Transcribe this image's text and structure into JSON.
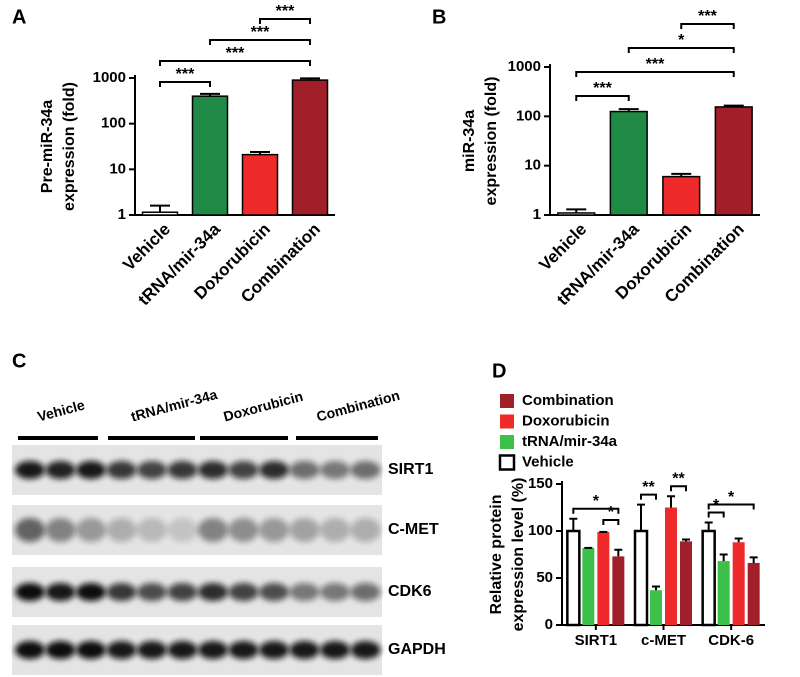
{
  "chart_data": [
    {
      "type": "bar",
      "panel_label": "A",
      "ylabel": [
        "Pre-miR-34a",
        "expression (fold)"
      ],
      "categories": [
        "Vehicle",
        "tRNA/mir-34a",
        "Doxorubicin",
        "Combination"
      ],
      "values": [
        1.15,
        400,
        21,
        900
      ],
      "errors": [
        0.45,
        50,
        3,
        80
      ],
      "colors": [
        "#ffffff",
        "#1e8a46",
        "#ee2a2a",
        "#a01f28"
      ],
      "log_scale": true,
      "ylim": [
        1,
        1000
      ],
      "yticks": [
        1,
        10,
        100,
        1000
      ],
      "annotations": [
        {
          "between": [
            0,
            1
          ],
          "label": "***"
        },
        {
          "between": [
            0,
            3
          ],
          "label": "***"
        },
        {
          "between": [
            1,
            3
          ],
          "label": "***"
        },
        {
          "between": [
            2,
            3
          ],
          "label": "***"
        }
      ]
    },
    {
      "type": "bar",
      "panel_label": "B",
      "ylabel": [
        "miR-34a",
        "expression (fold)"
      ],
      "categories": [
        "Vehicle",
        "tRNA/mir-34a",
        "Doxorubicin",
        "Combination"
      ],
      "values": [
        1.1,
        125,
        6,
        155
      ],
      "errors": [
        0.2,
        15,
        0.8,
        10
      ],
      "colors": [
        "#ffffff",
        "#1e8a46",
        "#ee2a2a",
        "#a01f28"
      ],
      "log_scale": true,
      "ylim": [
        1,
        1000
      ],
      "yticks": [
        1,
        10,
        100,
        1000
      ],
      "annotations": [
        {
          "between": [
            0,
            1
          ],
          "label": "***"
        },
        {
          "between": [
            0,
            3
          ],
          "label": "***"
        },
        {
          "between": [
            1,
            3
          ],
          "label": "*"
        },
        {
          "between": [
            2,
            3
          ],
          "label": "***"
        }
      ]
    },
    {
      "type": "grouped_bar",
      "panel_label": "D",
      "ylabel": [
        "Relative protein",
        "expression level (%)"
      ],
      "categories": [
        "SIRT1",
        "c-MET",
        "CDK-6"
      ],
      "series": [
        {
          "name": "Vehicle",
          "color": "#ffffff",
          "values": [
            100,
            100,
            100
          ],
          "errors": [
            13,
            28,
            9
          ]
        },
        {
          "name": "tRNA/mir-34a",
          "color": "#3cc04a",
          "values": [
            82,
            37,
            68
          ],
          "errors": [
            0,
            4,
            7
          ]
        },
        {
          "name": "Doxorubicin",
          "color": "#ee2a2a",
          "values": [
            99,
            125,
            88
          ],
          "errors": [
            0,
            12,
            4
          ]
        },
        {
          "name": "Combination",
          "color": "#a01f28",
          "values": [
            73,
            89,
            66
          ],
          "errors": [
            7,
            2,
            6
          ]
        }
      ],
      "ylim": [
        0,
        150
      ],
      "yticks": [
        0,
        50,
        100,
        150
      ],
      "annotations": [
        {
          "group": 0,
          "between": [
            0,
            3
          ],
          "label": "*"
        },
        {
          "group": 0,
          "between": [
            2,
            3
          ],
          "label": "*"
        },
        {
          "group": 1,
          "between": [
            0,
            1
          ],
          "label": "**"
        },
        {
          "group": 1,
          "between": [
            2,
            3
          ],
          "label": "**"
        },
        {
          "group": 2,
          "between": [
            0,
            1
          ],
          "label": "*"
        },
        {
          "group": 2,
          "between": [
            0,
            3
          ],
          "label": "*"
        }
      ]
    }
  ],
  "blot": {
    "panel_label": "C",
    "lanes": [
      "Vehicle",
      "tRNA/mir-34a",
      "Doxorubicin",
      "Combination"
    ],
    "rows": [
      "SIRT1",
      "C-MET",
      "CDK6",
      "GAPDH"
    ]
  }
}
